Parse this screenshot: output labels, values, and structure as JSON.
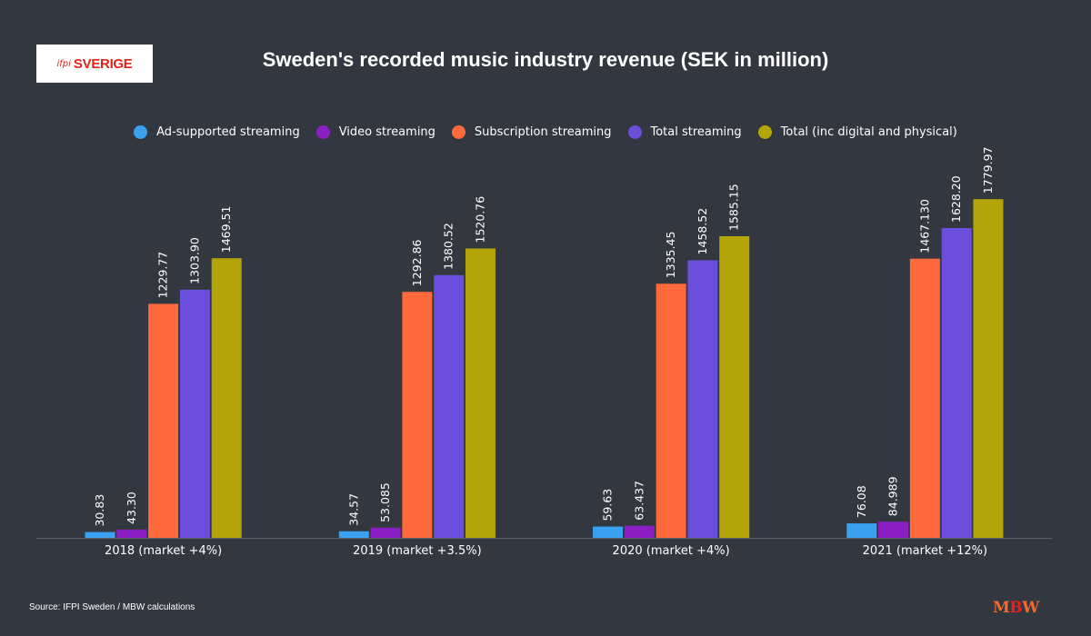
{
  "logo": {
    "mark": "ifpi",
    "word": "SVERIGE"
  },
  "title": "Sweden's recorded music industry revenue (SEK in million)",
  "source": "Source: IFPI Sweden / MBW calculations",
  "brand": {
    "part1": "M",
    "part2": "B",
    "part3": "W"
  },
  "chart_data": {
    "type": "bar",
    "title": "Sweden's recorded music industry revenue (SEK in million)",
    "categories": [
      "2018 (market +4%)",
      "2019 (market +3.5%)",
      "2020 (market +4%)",
      "2021 (market +12%)"
    ],
    "series": [
      {
        "name": "Ad-supported streaming",
        "color": "#3aa0f0",
        "values": [
          30.83,
          34.57,
          59.63,
          76.08
        ],
        "labels": [
          "30.83",
          "34.57",
          "59.63",
          "76.08"
        ]
      },
      {
        "name": "Video streaming",
        "color": "#8b1fc3",
        "values": [
          43.3,
          53.085,
          63.437,
          84.989
        ],
        "labels": [
          "43.30",
          "53.085",
          "63.437",
          "84.989"
        ]
      },
      {
        "name": "Subscription streaming",
        "color": "#ff6a3d",
        "values": [
          1229.77,
          1292.86,
          1335.45,
          1467.13
        ],
        "labels": [
          "1229.77",
          "1292.86",
          "1335.45",
          "1467.130"
        ]
      },
      {
        "name": "Total streaming",
        "color": "#6b4fdc",
        "values": [
          1303.9,
          1380.52,
          1458.52,
          1628.2
        ],
        "labels": [
          "1303.90",
          "1380.52",
          "1458.52",
          "1628.20"
        ]
      },
      {
        "name": "Total (inc digital and physical)",
        "color": "#b3a40a",
        "values": [
          1469.51,
          1520.76,
          1585.15,
          1779.97
        ],
        "labels": [
          "1469.51",
          "1520.76",
          "1585.15",
          "1779.97"
        ]
      }
    ],
    "ylim": [
      0,
      1800
    ],
    "grid": false,
    "legend_position": "top-center",
    "axis_color": "#5a6068"
  }
}
